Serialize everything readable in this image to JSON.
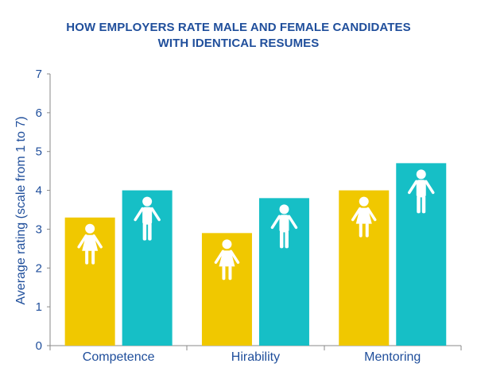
{
  "chart_data": {
    "type": "bar",
    "title_line1": "HOW EMPLOYERS RATE MALE AND FEMALE CANDIDATES",
    "title_line2": "WITH IDENTICAL RESUMES",
    "ylabel": "Average rating (scale from 1 to 7)",
    "xlabel": "",
    "ylim": [
      0,
      7
    ],
    "yticks": [
      "0",
      "1",
      "2",
      "3",
      "4",
      "5",
      "6",
      "7"
    ],
    "categories": [
      "Competence",
      "Hirability",
      "Mentoring"
    ],
    "series": [
      {
        "name": "female",
        "icon": "female-figure-icon",
        "color": "#f0c800",
        "values": [
          3.3,
          2.9,
          4.0
        ]
      },
      {
        "name": "male",
        "icon": "male-figure-icon",
        "color": "#16bfc6",
        "values": [
          4.0,
          3.8,
          4.7
        ]
      }
    ],
    "axis_color": "#8a8a8a",
    "text_color": "#1f4e9b"
  }
}
